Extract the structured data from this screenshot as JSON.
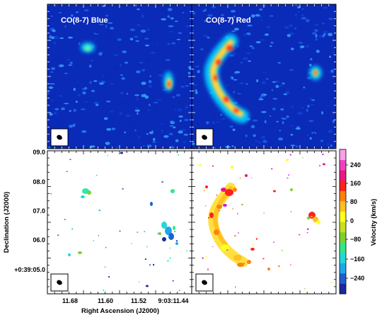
{
  "panels": {
    "blue_title": "CO(8-7) Blue",
    "red_title": "CO(8-7) Red"
  },
  "axes": {
    "xlabel": "Right Ascension (J2000)",
    "ylabel": "Declination (J2000)",
    "xticks": [
      "11.68",
      "11.60",
      "11.52",
      "9:03:11.44"
    ],
    "yticks": [
      "09.0",
      "08.0",
      "07.0",
      "06.0",
      "+0:39:05.0"
    ]
  },
  "colorbar": {
    "label": "Velocity (km/s)",
    "ticks": [
      "240",
      "160",
      "80",
      "0",
      "−80",
      "−160",
      "−240"
    ],
    "colors": [
      "#1a2a9a",
      "#1f5fd0",
      "#1fa8e8",
      "#22d8d8",
      "#2ee88a",
      "#7ed02a",
      "#c8e020",
      "#ffff20",
      "#ffc020",
      "#ff8010",
      "#ff2020",
      "#e81880",
      "#f040c0",
      "#f8a0e8"
    ]
  }
}
